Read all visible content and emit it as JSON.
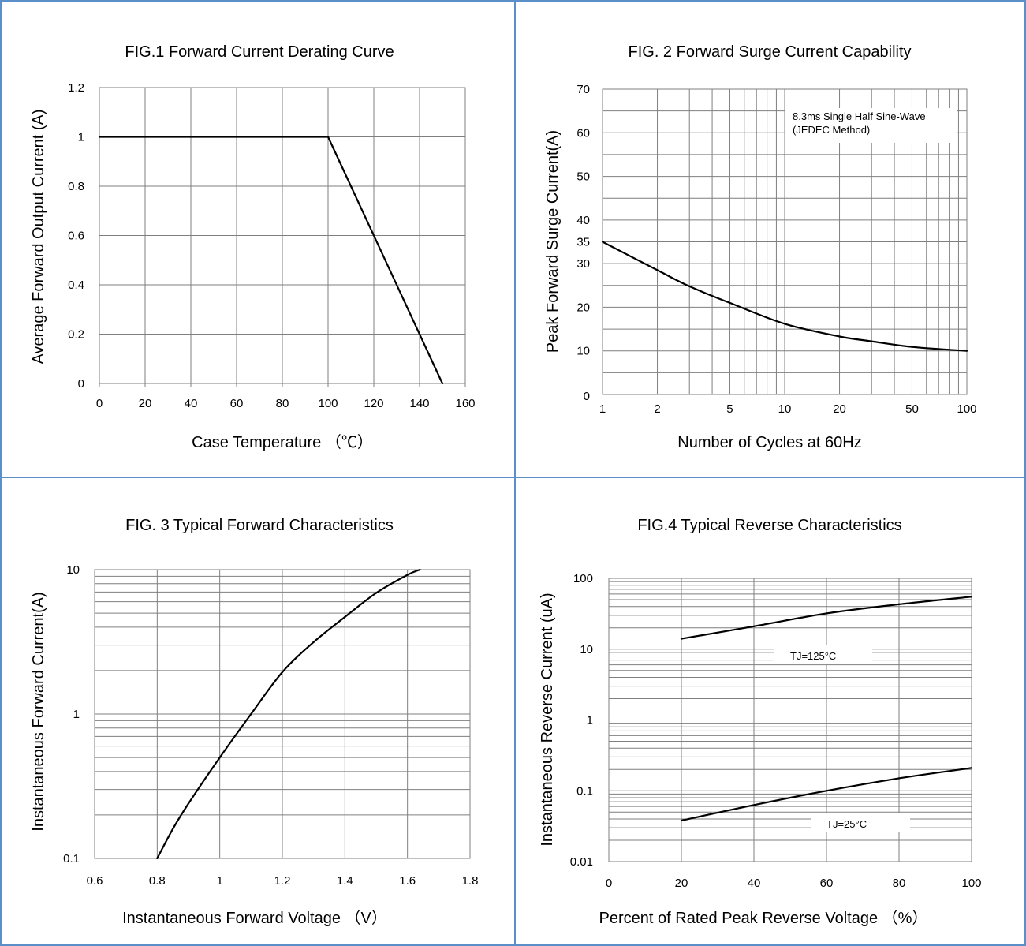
{
  "chart_data": [
    {
      "type": "line",
      "title": "FIG.1 Forward Current Derating Curve",
      "xlabel": "Case Temperature （℃）",
      "ylabel": "Average Forward Output Current (A)",
      "xlim": [
        0,
        160
      ],
      "ylim": [
        0,
        1.2
      ],
      "xscale": "linear",
      "yscale": "linear",
      "xticks": [
        0,
        20,
        40,
        60,
        80,
        100,
        120,
        140,
        160
      ],
      "xticklabels": [
        "0",
        "20",
        "40",
        "60",
        "80",
        "100",
        "120",
        "140",
        "160"
      ],
      "yticks": [
        0,
        0.2,
        0.4,
        0.6,
        0.8,
        1,
        1.2
      ],
      "yticklabels": [
        "0",
        "0.2",
        "0.4",
        "0.6",
        "0.8",
        "1",
        "1.2"
      ],
      "grid": true,
      "series": [
        {
          "x": [
            0,
            100,
            150
          ],
          "y": [
            1,
            1,
            0
          ]
        }
      ]
    },
    {
      "type": "line",
      "title": "FIG. 2 Forward Surge Current Capability",
      "xlabel": "Number of Cycles at 60Hz",
      "ylabel": "Peak Forward Surge Current(A)",
      "xlim": [
        1,
        100
      ],
      "ylim": [
        0,
        70
      ],
      "xscale": "log",
      "yscale": "linear",
      "xticks": [
        1,
        2,
        5,
        10,
        20,
        50,
        100
      ],
      "xticklabels": [
        "1",
        "2",
        "5",
        "10",
        "20",
        "50",
        "100"
      ],
      "yticks": [
        0,
        10,
        20,
        30,
        35,
        40,
        50,
        60,
        70
      ],
      "yticklabels": [
        "0",
        "10",
        "20",
        "30",
        "35",
        "40",
        "50",
        "60",
        "70"
      ],
      "grid": true,
      "annotations": [
        "8.3ms Single Half Sine-Wave",
        "(JEDEC Method)"
      ],
      "series": [
        {
          "x": [
            1,
            2,
            3,
            5,
            10,
            20,
            30,
            50,
            100
          ],
          "y": [
            35,
            28.5,
            24.8,
            21,
            16.2,
            13.3,
            12.2,
            10.9,
            10
          ]
        }
      ]
    },
    {
      "type": "line",
      "title": "FIG. 3 Typical Forward Characteristics",
      "xlabel": "Instantaneous Forward Voltage （V）",
      "ylabel": "Instantaneous Forward Current(A)",
      "xlim": [
        0.6,
        1.8
      ],
      "ylim": [
        0.1,
        10
      ],
      "xscale": "linear",
      "yscale": "log",
      "xticks": [
        0.6,
        0.8,
        1,
        1.2,
        1.4,
        1.6,
        1.8
      ],
      "xticklabels": [
        "0.6",
        "0.8",
        "1",
        "1.2",
        "1.4",
        "1.6",
        "1.8"
      ],
      "yticks": [
        0.1,
        1,
        10
      ],
      "yticklabels": [
        "0.1",
        "1",
        "10"
      ],
      "grid": true,
      "series": [
        {
          "x": [
            0.8,
            0.85,
            0.9,
            1.0,
            1.1,
            1.2,
            1.3,
            1.4,
            1.5,
            1.6,
            1.64
          ],
          "y": [
            0.1,
            0.16,
            0.24,
            0.5,
            1.0,
            1.95,
            3.15,
            4.7,
            6.9,
            9.2,
            10
          ]
        }
      ]
    },
    {
      "type": "line",
      "title": "FIG.4 Typical Reverse Characteristics",
      "xlabel": "Percent of Rated Peak Reverse Voltage （%）",
      "ylabel": "Instantaneous Reverse Current (uA)",
      "xlim": [
        0,
        100
      ],
      "ylim": [
        0.01,
        100
      ],
      "xscale": "linear",
      "yscale": "log",
      "xticks": [
        0,
        20,
        40,
        60,
        80,
        100
      ],
      "xticklabels": [
        "0",
        "20",
        "40",
        "60",
        "80",
        "100"
      ],
      "yticks": [
        0.01,
        0.1,
        1,
        10,
        100
      ],
      "yticklabels": [
        "0.01",
        "0.1",
        "1",
        "10",
        "100"
      ],
      "grid": true,
      "series": [
        {
          "name": "TJ=125°C",
          "x": [
            20,
            40,
            60,
            80,
            100
          ],
          "y": [
            14,
            21,
            32,
            43,
            55
          ]
        },
        {
          "name": "TJ=25°C",
          "x": [
            20,
            40,
            60,
            80,
            100
          ],
          "y": [
            0.038,
            0.063,
            0.1,
            0.15,
            0.21
          ]
        }
      ]
    }
  ]
}
